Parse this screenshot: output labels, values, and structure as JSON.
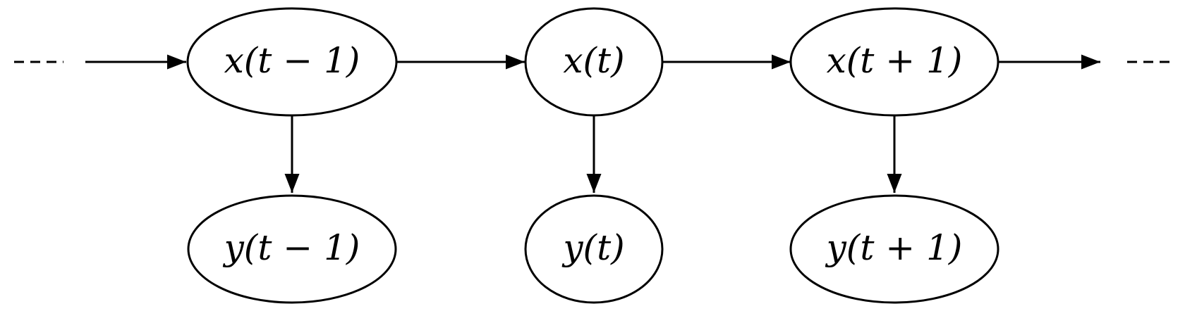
{
  "nodes": {
    "x_prev": "x(t − 1)",
    "x_curr": "x(t)",
    "x_next": "x(t + 1)",
    "y_prev": "y(t − 1)",
    "y_curr": "y(t)",
    "y_next": "y(t + 1)"
  },
  "edges": [
    {
      "from": "left-continuation",
      "to": "x_prev"
    },
    {
      "from": "x_prev",
      "to": "x_curr"
    },
    {
      "from": "x_curr",
      "to": "x_next"
    },
    {
      "from": "x_next",
      "to": "right-continuation"
    },
    {
      "from": "x_prev",
      "to": "y_prev"
    },
    {
      "from": "x_curr",
      "to": "y_curr"
    },
    {
      "from": "x_next",
      "to": "y_next"
    }
  ],
  "colors": {
    "stroke": "#000000",
    "background": "#ffffff"
  }
}
